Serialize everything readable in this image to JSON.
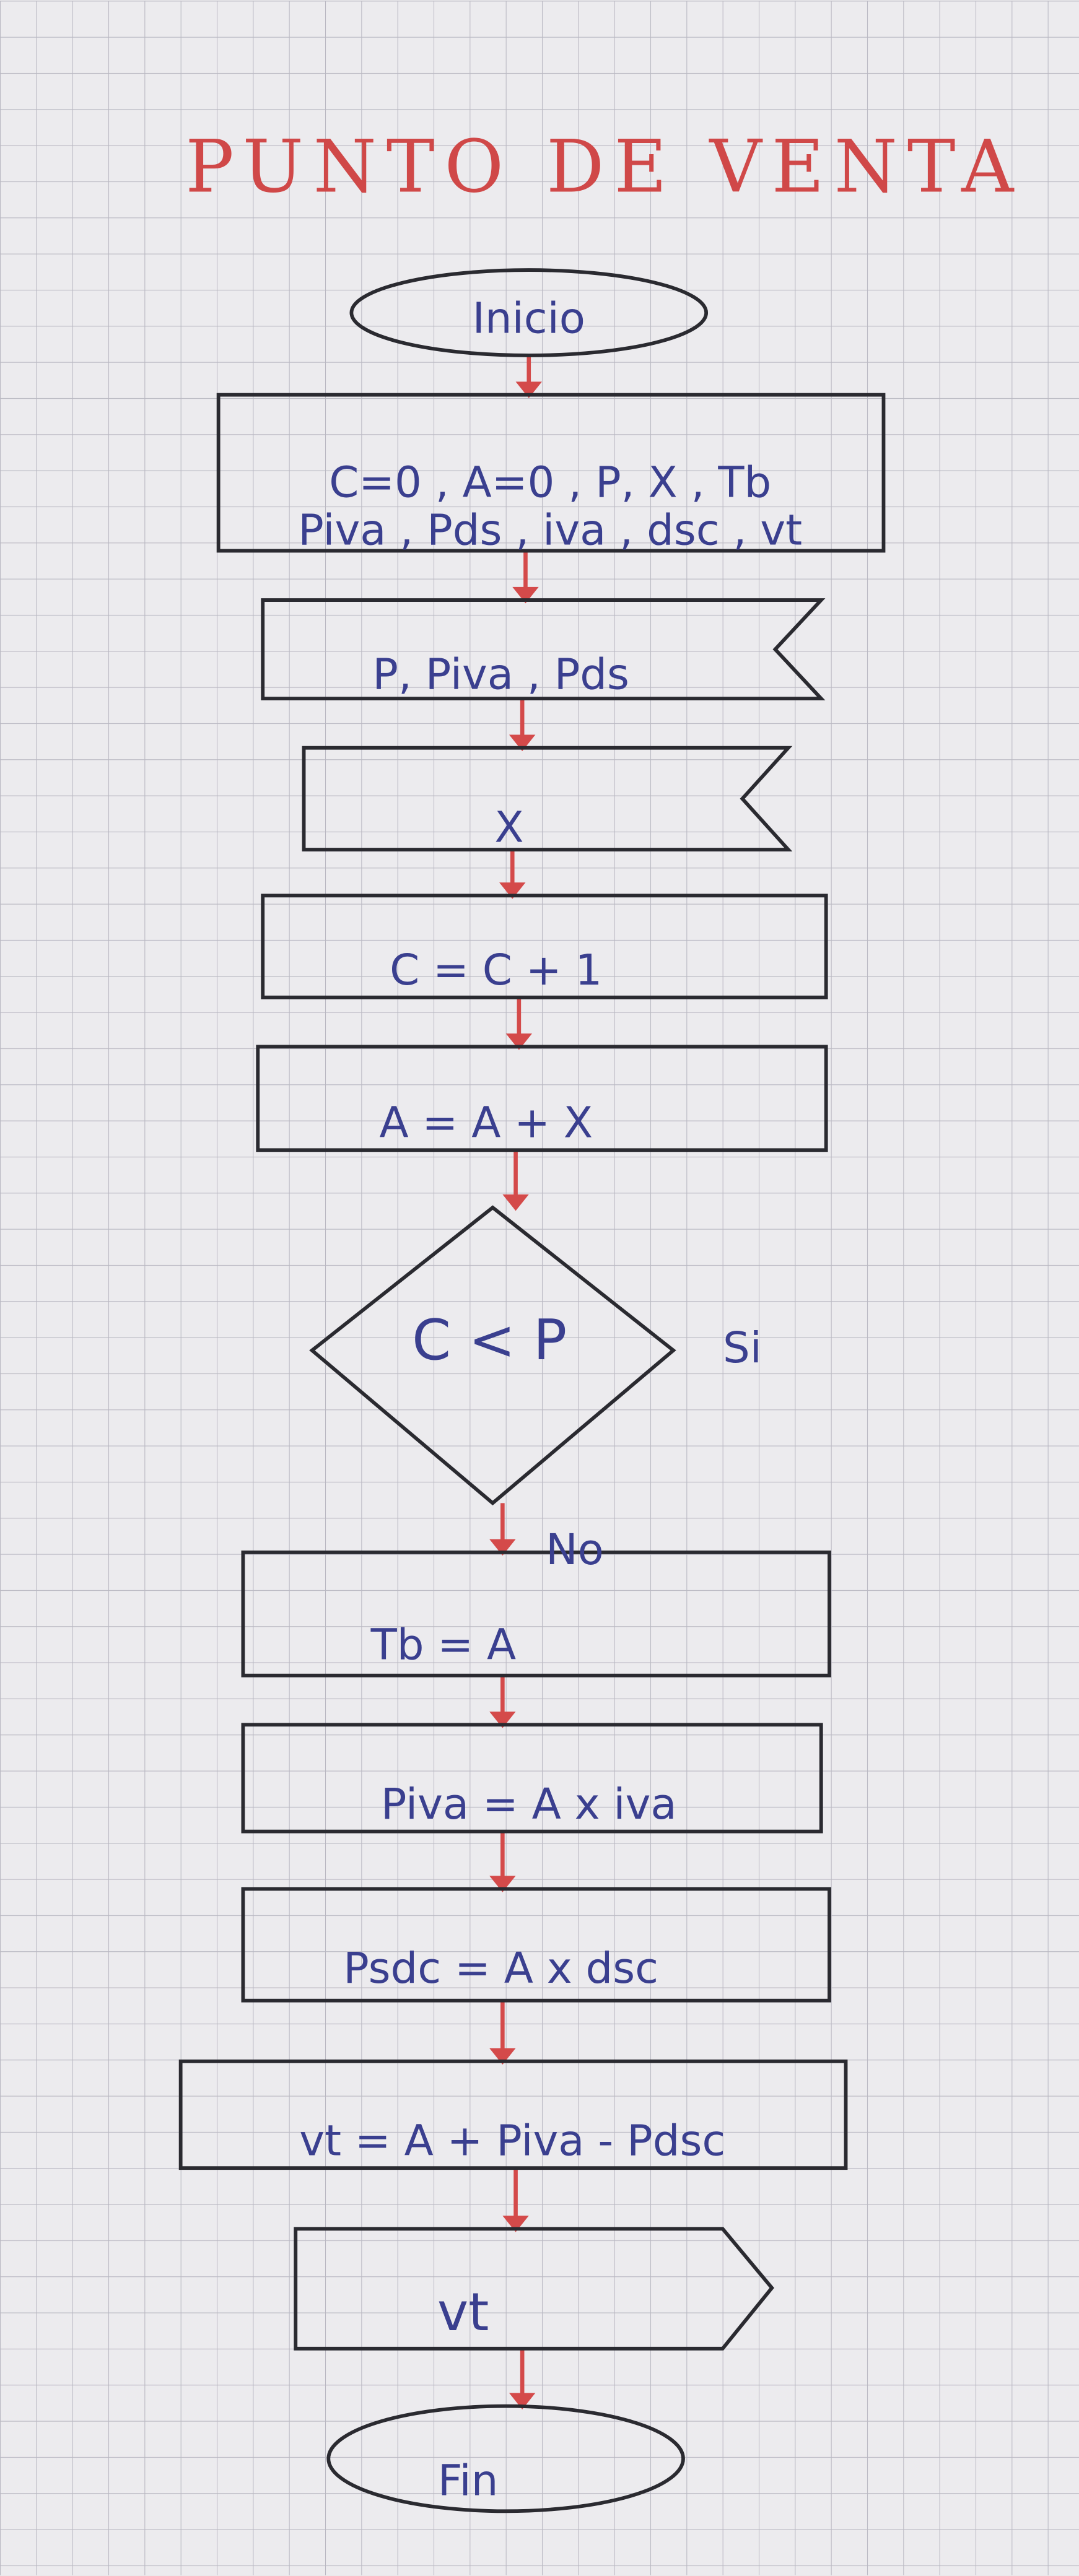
{
  "title": "PUNTO DE VENTA",
  "nodes": [
    {
      "label": "Inicio"
    },
    {
      "label": "C=0 , A=0 , P, X , Tb"
    },
    {
      "label": "Piva , Pds , iva , dsc , vt"
    },
    {
      "label": "P, Piva , Pds"
    },
    {
      "label": "X"
    },
    {
      "label": "C = C + 1"
    },
    {
      "label": "A = A + X"
    },
    {
      "label": "C < P"
    },
    {
      "label": "Tb = A"
    },
    {
      "label": "Piva = A x iva"
    },
    {
      "label": "Psdc = A x dsc"
    },
    {
      "label": "vt = A + Piva - Pdsc"
    },
    {
      "label": "vt"
    },
    {
      "label": "Fin"
    }
  ],
  "edges": [
    {
      "label": "Si"
    },
    {
      "label": "No"
    }
  ]
}
